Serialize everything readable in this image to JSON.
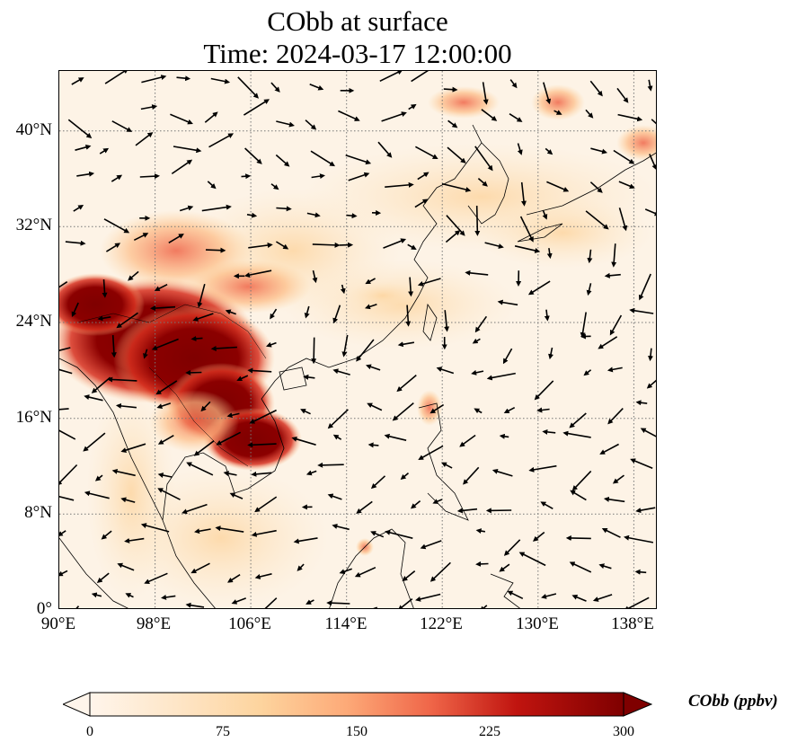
{
  "title_line1": "CObb at surface",
  "title_line2": "Time: 2024-03-17 12:00:00",
  "lat_ticks": [
    "0°",
    "8°N",
    "16°N",
    "24°N",
    "32°N",
    "40°N"
  ],
  "lon_ticks": [
    "90°E",
    "98°E",
    "106°E",
    "114°E",
    "122°E",
    "130°E",
    "138°E"
  ],
  "colorbar": {
    "label": "CObb (ppbv)",
    "ticks": [
      "0",
      "75",
      "150",
      "225",
      "300"
    ],
    "min": 0,
    "max": 300,
    "colors": [
      "#fff5eb",
      "#fdd9b0",
      "#fdae6b",
      "#f16913",
      "#d94801",
      "#a63603",
      "#7f0000"
    ]
  },
  "map": {
    "lon_range": [
      90,
      140
    ],
    "lat_range": [
      0,
      45
    ],
    "gridline_style": "dotted",
    "colormap": "OrRd",
    "plumes": [
      {
        "region": "Myanmar-Laos-Thailand",
        "level": "high"
      },
      {
        "region": "Cambodia-Vietnam",
        "level": "high"
      },
      {
        "region": "Yunnan-Sichuan",
        "level": "medium"
      },
      {
        "region": "Northeast China",
        "level": "medium"
      },
      {
        "region": "Far East Russia",
        "level": "medium"
      },
      {
        "region": "Luzon",
        "level": "low"
      }
    ]
  }
}
